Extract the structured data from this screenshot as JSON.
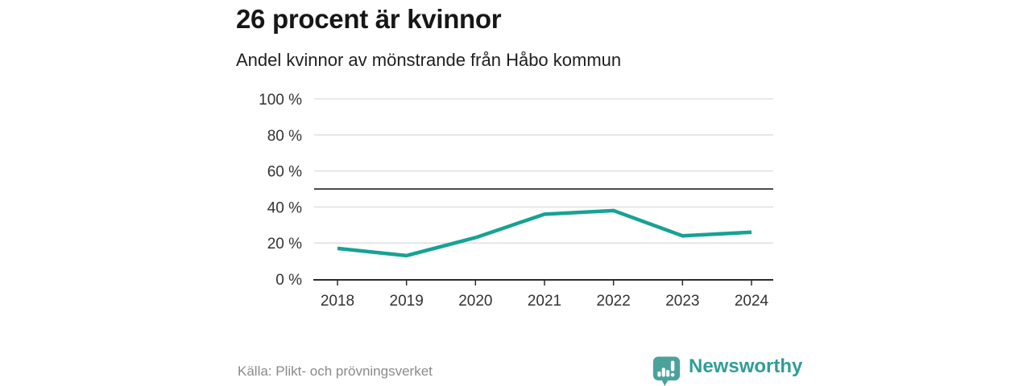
{
  "header": {
    "title": "26 procent är kvinnor",
    "subtitle": "Andel kvinnor av mönstrande från Håbo kommun"
  },
  "chart_data": {
    "type": "line",
    "title": "26 procent är kvinnor",
    "subtitle": "Andel kvinnor av mönstrande från Håbo kommun",
    "categories": [
      "2018",
      "2019",
      "2020",
      "2021",
      "2022",
      "2023",
      "2024"
    ],
    "series": [
      {
        "name": "Andel kvinnor av mönstrande",
        "values": [
          17,
          13,
          23,
          36,
          38,
          24,
          26
        ]
      }
    ],
    "ylim": [
      0,
      100
    ],
    "yticks": [
      {
        "value": 0,
        "label": "0 %"
      },
      {
        "value": 20,
        "label": "20 %"
      },
      {
        "value": 40,
        "label": "40 %"
      },
      {
        "value": 60,
        "label": "60 %"
      },
      {
        "value": 80,
        "label": "80 %"
      },
      {
        "value": 100,
        "label": "100 %"
      }
    ],
    "reference_line": 50,
    "grid": true,
    "legend": "none",
    "xlabel": "",
    "ylabel": ""
  },
  "footer": {
    "source": "Källa: Plikt- och prövningsverket",
    "logo_text": "Newsworthy"
  },
  "colors": {
    "line": "#17A294",
    "grid": "#dcdcdc",
    "reference": "#4d4d4d",
    "axis": "#2b2b2b",
    "tick_text": "#333333",
    "logo_icon": "#4BA29B",
    "logo_text": "#2F9D97"
  }
}
